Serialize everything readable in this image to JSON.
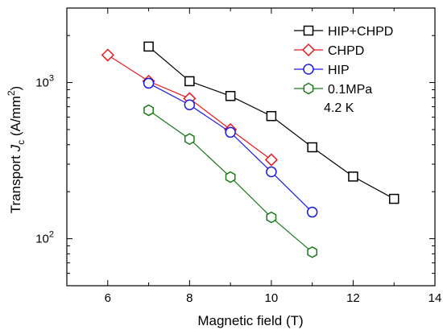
{
  "chart_data": {
    "type": "scatter",
    "x_axis": {
      "label": "Magnetic field (T)",
      "range": [
        5,
        14
      ],
      "ticks": [
        6,
        8,
        10,
        12,
        14
      ],
      "tick_labels": [
        "6",
        "8",
        "10",
        "12",
        "14"
      ],
      "minor_ticks": [
        5,
        7,
        9,
        11,
        13
      ]
    },
    "y_axis": {
      "label_parts": {
        "prefix": "Transport ",
        "italic": "J",
        "subscript": "c",
        "suffix": " (A/mm",
        "superscript": "2",
        "close": ")"
      },
      "scale": "log",
      "range": [
        50,
        3000
      ],
      "major_ticks": [
        100,
        1000
      ],
      "tick_labels": [
        {
          "mantissa": "10",
          "exponent": "2"
        },
        {
          "mantissa": "10",
          "exponent": "3"
        }
      ]
    },
    "grid": false,
    "legend_position": "top-right",
    "annotation": "4.2 K",
    "series": [
      {
        "name": "HIP+CHPD",
        "color": "#000000",
        "marker": "square",
        "x": [
          7,
          8,
          9,
          10,
          11,
          12,
          13
        ],
        "y": [
          1700,
          1020,
          820,
          610,
          385,
          250,
          180
        ]
      },
      {
        "name": "CHPD",
        "color": "#e8191c",
        "marker": "diamond",
        "x": [
          6,
          7,
          8,
          9,
          10
        ],
        "y": [
          1500,
          1020,
          790,
          500,
          320
        ]
      },
      {
        "name": "HIP",
        "color": "#1919e8",
        "marker": "circle",
        "x": [
          7,
          8,
          9,
          10,
          11
        ],
        "y": [
          990,
          720,
          480,
          268,
          148
        ]
      },
      {
        "name": "0.1MPa",
        "color": "#1a7a1a",
        "marker": "hexagon",
        "x": [
          7,
          8,
          9,
          10,
          11
        ],
        "y": [
          665,
          435,
          248,
          137,
          82
        ]
      }
    ]
  }
}
